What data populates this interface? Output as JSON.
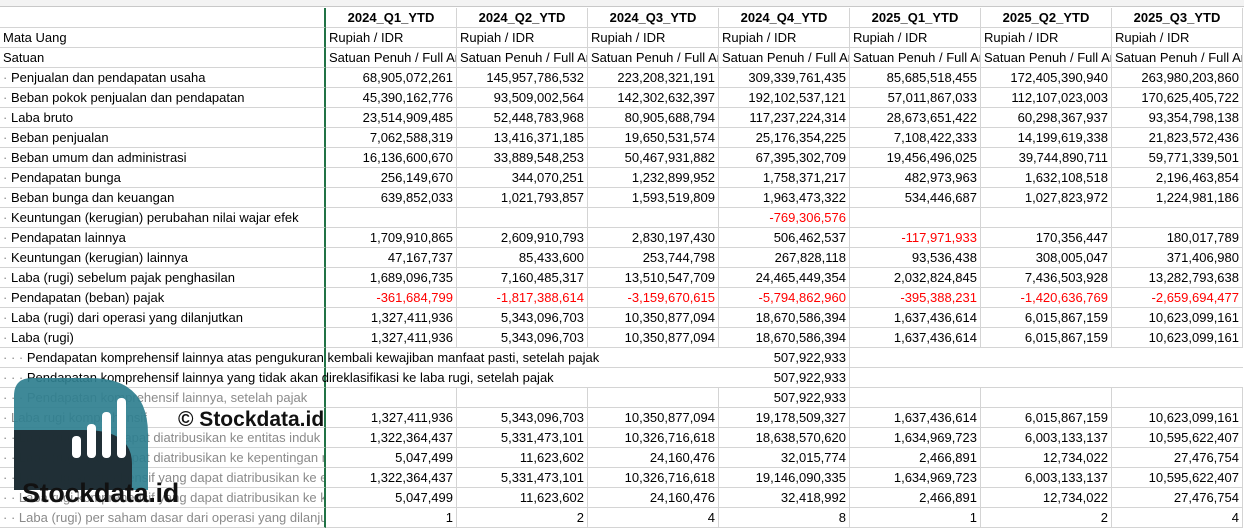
{
  "sheet": {
    "columns": [
      "2024_Q1_YTD",
      "2024_Q2_YTD",
      "2024_Q3_YTD",
      "2024_Q4_YTD",
      "2025_Q1_YTD",
      "2025_Q2_YTD",
      "2025_Q3_YTD"
    ],
    "rows": [
      {
        "label": "Mata Uang",
        "prefix": "",
        "faint": false,
        "spill": false,
        "values": [
          "Rupiah / IDR",
          "Rupiah / IDR",
          "Rupiah / IDR",
          "Rupiah / IDR",
          "Rupiah / IDR",
          "Rupiah / IDR",
          "Rupiah / IDR"
        ]
      },
      {
        "label": "Satuan",
        "prefix": "",
        "faint": false,
        "spill": false,
        "values": [
          "Satuan Penuh / Full Amount",
          "Satuan Penuh / Full Amount",
          "Satuan Penuh / Full Amount",
          "Satuan Penuh / Full Amount",
          "Satuan Penuh / Full Amount",
          "Satuan Penuh / Full Amount",
          "Satuan Penuh / Full Amount"
        ]
      },
      {
        "label": "Penjualan dan pendapatan usaha",
        "prefix": "·",
        "faint": false,
        "spill": false,
        "values": [
          "68,905,072,261",
          "145,957,786,532",
          "223,208,321,191",
          "309,339,761,435",
          "85,685,518,455",
          "172,405,390,940",
          "263,980,203,860"
        ]
      },
      {
        "label": "Beban pokok penjualan dan pendapatan",
        "prefix": "·",
        "faint": false,
        "spill": false,
        "values": [
          "45,390,162,776",
          "93,509,002,564",
          "142,302,632,397",
          "192,102,537,121",
          "57,011,867,033",
          "112,107,023,003",
          "170,625,405,722"
        ]
      },
      {
        "label": "Laba bruto",
        "prefix": "·",
        "faint": false,
        "spill": false,
        "values": [
          "23,514,909,485",
          "52,448,783,968",
          "80,905,688,794",
          "117,237,224,314",
          "28,673,651,422",
          "60,298,367,937",
          "93,354,798,138"
        ]
      },
      {
        "label": "Beban penjualan",
        "prefix": "·",
        "faint": false,
        "spill": false,
        "values": [
          "7,062,588,319",
          "13,416,371,185",
          "19,650,531,574",
          "25,176,354,225",
          "7,108,422,333",
          "14,199,619,338",
          "21,823,572,436"
        ]
      },
      {
        "label": "Beban umum dan administrasi",
        "prefix": "·",
        "faint": false,
        "spill": false,
        "values": [
          "16,136,600,670",
          "33,889,548,253",
          "50,467,931,882",
          "67,395,302,709",
          "19,456,496,025",
          "39,744,890,711",
          "59,771,339,501"
        ]
      },
      {
        "label": "Pendapatan bunga",
        "prefix": "·",
        "faint": false,
        "spill": false,
        "values": [
          "256,149,670",
          "344,070,251",
          "1,232,899,952",
          "1,758,371,217",
          "482,973,963",
          "1,632,108,518",
          "2,196,463,854"
        ]
      },
      {
        "label": "Beban bunga dan keuangan",
        "prefix": "·",
        "faint": false,
        "spill": false,
        "values": [
          "639,852,033",
          "1,021,793,857",
          "1,593,519,809",
          "1,963,473,322",
          "534,446,687",
          "1,027,823,972",
          "1,224,981,186"
        ]
      },
      {
        "label": "Keuntungan (kerugian) perubahan nilai wajar efek",
        "prefix": "·",
        "faint": false,
        "spill": false,
        "values": [
          "",
          "",
          "",
          "-769,306,576",
          "",
          "",
          ""
        ]
      },
      {
        "label": "Pendapatan lainnya",
        "prefix": "·",
        "faint": false,
        "spill": false,
        "values": [
          "1,709,910,865",
          "2,609,910,793",
          "2,830,197,430",
          "506,462,537",
          "-117,971,933",
          "170,356,447",
          "180,017,789"
        ]
      },
      {
        "label": "Keuntungan (kerugian) lainnya",
        "prefix": "·",
        "faint": false,
        "spill": false,
        "values": [
          "47,167,737",
          "85,433,600",
          "253,744,798",
          "267,828,118",
          "93,536,438",
          "308,005,047",
          "371,406,980"
        ]
      },
      {
        "label": "Laba (rugi) sebelum pajak penghasilan",
        "prefix": "·",
        "faint": false,
        "spill": false,
        "values": [
          "1,689,096,735",
          "7,160,485,317",
          "13,510,547,709",
          "24,465,449,354",
          "2,032,824,845",
          "7,436,503,928",
          "13,282,793,638"
        ]
      },
      {
        "label": "Pendapatan (beban) pajak",
        "prefix": "·",
        "faint": false,
        "spill": false,
        "values": [
          "-361,684,799",
          "-1,817,388,614",
          "-3,159,670,615",
          "-5,794,862,960",
          "-395,388,231",
          "-1,420,636,769",
          "-2,659,694,477"
        ]
      },
      {
        "label": "Laba (rugi) dari operasi yang dilanjutkan",
        "prefix": "·",
        "faint": false,
        "spill": false,
        "values": [
          "1,327,411,936",
          "5,343,096,703",
          "10,350,877,094",
          "18,670,586,394",
          "1,637,436,614",
          "6,015,867,159",
          "10,623,099,161"
        ]
      },
      {
        "label": "Laba (rugi)",
        "prefix": "·",
        "faint": false,
        "spill": false,
        "values": [
          "1,327,411,936",
          "5,343,096,703",
          "10,350,877,094",
          "18,670,586,394",
          "1,637,436,614",
          "6,015,867,159",
          "10,623,099,161"
        ]
      },
      {
        "label": "Pendapatan komprehensif lainnya atas pengukuran kembali kewajiban manfaat pasti, setelah pajak",
        "prefix": "· · ·",
        "faint": false,
        "spill": true,
        "values": [
          "",
          "",
          "",
          "507,922,933",
          "",
          "",
          ""
        ]
      },
      {
        "label": "Pendapatan komprehensif lainnya yang tidak akan direklasifikasi ke laba rugi, setelah pajak",
        "prefix": "· · ·",
        "faint": false,
        "spill": true,
        "values": [
          "",
          "",
          "",
          "507,922,933",
          "",
          "",
          ""
        ]
      },
      {
        "label": "Pendapatan komprehensif lainnya, setelah pajak",
        "prefix": "· · ·",
        "faint": true,
        "spill": false,
        "values": [
          "",
          "",
          "",
          "507,922,933",
          "",
          "",
          ""
        ]
      },
      {
        "label": "Laba rugi komprehensif",
        "prefix": "·",
        "faint": true,
        "spill": false,
        "values": [
          "1,327,411,936",
          "5,343,096,703",
          "10,350,877,094",
          "19,178,509,327",
          "1,637,436,614",
          "6,015,867,159",
          "10,623,099,161"
        ]
      },
      {
        "label": "Laba (rugi) yang dapat diatribusikan ke entitas induk",
        "prefix": "· ·",
        "faint": true,
        "spill": false,
        "values": [
          "1,322,364,437",
          "5,331,473,101",
          "10,326,716,618",
          "18,638,570,620",
          "1,634,969,723",
          "6,003,133,137",
          "10,595,622,407"
        ]
      },
      {
        "label": "Laba (rugi) yang dapat diatribusikan ke kepentingan non-pengendali",
        "prefix": "· ·",
        "faint": true,
        "spill": false,
        "values": [
          "5,047,499",
          "11,623,602",
          "24,160,476",
          "32,015,774",
          "2,466,891",
          "12,734,022",
          "27,476,754"
        ]
      },
      {
        "label": "Laba rugi komprehensif yang dapat diatribusikan ke entitas induk",
        "prefix": "· ·",
        "faint": true,
        "spill": false,
        "values": [
          "1,322,364,437",
          "5,331,473,101",
          "10,326,716,618",
          "19,146,090,335",
          "1,634,969,723",
          "6,003,133,137",
          "10,595,622,407"
        ]
      },
      {
        "label": "Laba rugi komprehensif yang dapat diatribusikan ke kepentingan non-pengendali",
        "prefix": "· ·",
        "faint": true,
        "spill": false,
        "values": [
          "5,047,499",
          "11,623,602",
          "24,160,476",
          "32,418,992",
          "2,466,891",
          "12,734,022",
          "27,476,754"
        ]
      },
      {
        "label": "Laba (rugi) per saham dasar dari operasi yang dilanjutkan",
        "prefix": "· ·",
        "faint": true,
        "spill": false,
        "values": [
          "1",
          "2",
          "4",
          "8",
          "1",
          "2",
          "4"
        ]
      }
    ]
  },
  "watermark": {
    "copyright": "© Stockdata.id",
    "brand": "Stockdata.id"
  },
  "colors": {
    "negative": "#ff0000",
    "frozen_border": "#217346",
    "logo_teal": "#2f7f8f",
    "logo_dark": "#263238"
  }
}
